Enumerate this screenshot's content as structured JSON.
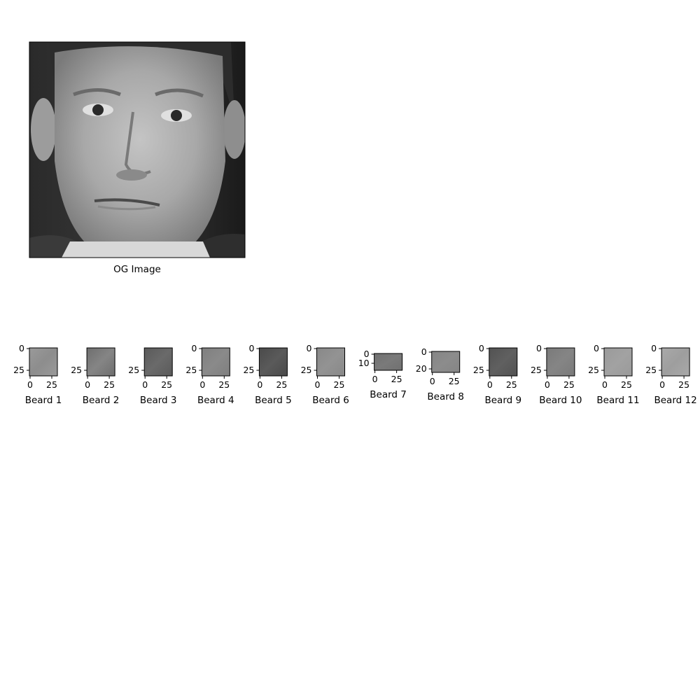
{
  "figure": {
    "main_image": {
      "label": "OG Image",
      "icon": "face-photo-icon",
      "colormap": "gray"
    },
    "crops": [
      {
        "label": "Beard 1",
        "xticks": [
          "0",
          "25"
        ],
        "yticks": [
          "0",
          "25"
        ],
        "tone": "#8d8d8d",
        "tone2": "#9a9a9a"
      },
      {
        "label": "Beard 2",
        "xticks": [
          "0",
          "25"
        ],
        "yticks": [
          "25"
        ],
        "tone": "#858585",
        "tone2": "#6e6e6e"
      },
      {
        "label": "Beard 3",
        "xticks": [
          "0",
          "25"
        ],
        "yticks": [
          "25"
        ],
        "tone": "#6a6a6a",
        "tone2": "#5a5a5a"
      },
      {
        "label": "Beard 4",
        "xticks": [
          "0",
          "25"
        ],
        "yticks": [
          "0",
          "25"
        ],
        "tone": "#8a8a8a",
        "tone2": "#7f7f7f"
      },
      {
        "label": "Beard 5",
        "xticks": [
          "0",
          "25"
        ],
        "yticks": [
          "0",
          "25"
        ],
        "tone": "#5a5a5a",
        "tone2": "#4a4a4a"
      },
      {
        "label": "Beard 6",
        "xticks": [
          "0",
          "25"
        ],
        "yticks": [
          "0",
          "25"
        ],
        "tone": "#939393",
        "tone2": "#888888"
      },
      {
        "label": "Beard 7",
        "xticks": [
          "0",
          "25"
        ],
        "yticks": [
          "0",
          "10"
        ],
        "tone": "#7a7a7a",
        "tone2": "#707070"
      },
      {
        "label": "Beard 8",
        "xticks": [
          "0",
          "25"
        ],
        "yticks": [
          "0",
          "20"
        ],
        "tone": "#8c8c8c",
        "tone2": "#858585"
      },
      {
        "label": "Beard 9",
        "xticks": [
          "0",
          "25"
        ],
        "yticks": [
          "0",
          "25"
        ],
        "tone": "#606060",
        "tone2": "#525252"
      },
      {
        "label": "Beard 10",
        "xticks": [
          "0",
          "25"
        ],
        "yticks": [
          "0",
          "25"
        ],
        "tone": "#858585",
        "tone2": "#7a7a7a"
      },
      {
        "label": "Beard 11",
        "xticks": [
          "0",
          "25"
        ],
        "yticks": [
          "0",
          "25"
        ],
        "tone": "#a2a2a2",
        "tone2": "#9a9a9a"
      },
      {
        "label": "Beard 12",
        "xticks": [
          "0",
          "25"
        ],
        "yticks": [
          "0",
          "25"
        ],
        "tone": "#9e9e9e",
        "tone2": "#a9a9a9"
      }
    ]
  }
}
